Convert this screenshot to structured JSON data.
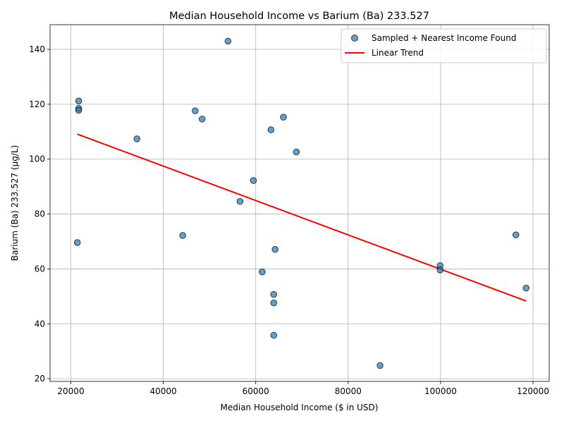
{
  "chart_data": {
    "type": "scatter",
    "title": "Median Household Income vs Barium (Ba) 233.527",
    "xlabel": "Median Household Income ($ in USD)",
    "ylabel": "Barium (Ba) 233.527 (µg/L)",
    "xlim": [
      15500,
      123500
    ],
    "ylim": [
      19,
      149
    ],
    "xticks": [
      20000,
      40000,
      60000,
      80000,
      100000,
      120000
    ],
    "yticks": [
      20,
      40,
      60,
      80,
      100,
      120,
      140
    ],
    "grid": true,
    "legend_position": "top-right",
    "series": [
      {
        "name": "Sampled + Nearest Income Found",
        "kind": "scatter",
        "color": "#1f77b4",
        "points": [
          {
            "x": 54000,
            "y": 143.0
          },
          {
            "x": 21700,
            "y": 121.2
          },
          {
            "x": 21700,
            "y": 118.5
          },
          {
            "x": 21700,
            "y": 117.8
          },
          {
            "x": 46900,
            "y": 117.6
          },
          {
            "x": 48400,
            "y": 114.6
          },
          {
            "x": 66000,
            "y": 115.3
          },
          {
            "x": 63300,
            "y": 110.7
          },
          {
            "x": 34300,
            "y": 107.4
          },
          {
            "x": 68800,
            "y": 102.6
          },
          {
            "x": 59500,
            "y": 92.2
          },
          {
            "x": 56600,
            "y": 84.6
          },
          {
            "x": 44200,
            "y": 72.2
          },
          {
            "x": 116300,
            "y": 72.4
          },
          {
            "x": 21400,
            "y": 69.6
          },
          {
            "x": 64200,
            "y": 67.1
          },
          {
            "x": 99900,
            "y": 61.2
          },
          {
            "x": 99900,
            "y": 59.6
          },
          {
            "x": 61400,
            "y": 58.9
          },
          {
            "x": 118500,
            "y": 53.0
          },
          {
            "x": 63900,
            "y": 50.7
          },
          {
            "x": 63900,
            "y": 47.6
          },
          {
            "x": 63900,
            "y": 35.8
          },
          {
            "x": 86900,
            "y": 24.8
          }
        ]
      },
      {
        "name": "Linear Trend",
        "kind": "line",
        "color": "#ff0000",
        "points": [
          {
            "x": 21400,
            "y": 109.1
          },
          {
            "x": 118500,
            "y": 48.3
          }
        ]
      }
    ]
  }
}
